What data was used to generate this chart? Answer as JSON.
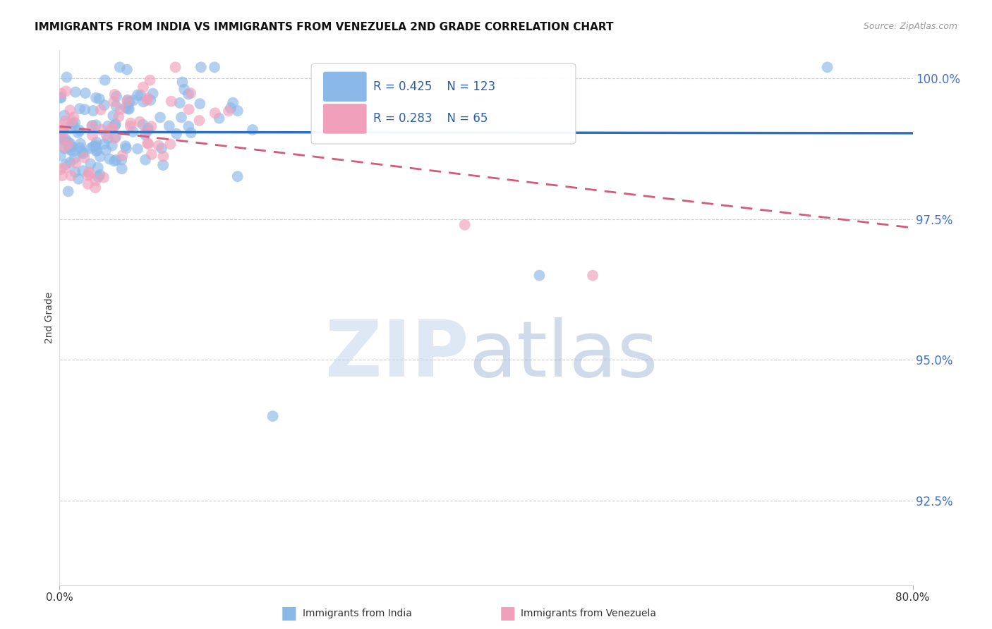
{
  "title": "IMMIGRANTS FROM INDIA VS IMMIGRANTS FROM VENEZUELA 2ND GRADE CORRELATION CHART",
  "source_text": "Source: ZipAtlas.com",
  "ylabel": "2nd Grade",
  "x_min": 0.0,
  "x_max": 0.8,
  "y_min": 0.91,
  "y_max": 1.005,
  "y_tick_values": [
    1.0,
    0.975,
    0.95,
    0.925
  ],
  "y_tick_labels": [
    "100.0%",
    "97.5%",
    "95.0%",
    "92.5%"
  ],
  "india_color": "#8AB8E8",
  "venezuela_color": "#F0A0BB",
  "india_line_color": "#2E6FBF",
  "venezuela_line_color": "#D45B7A",
  "R_india": 0.425,
  "N_india": 123,
  "R_venezuela": 0.283,
  "N_venezuela": 65,
  "legend_text_color": "#2B5FA8",
  "ytick_color": "#4472C4",
  "watermark_zip_color": "#C8D8EE",
  "watermark_atlas_color": "#A0B8D8"
}
